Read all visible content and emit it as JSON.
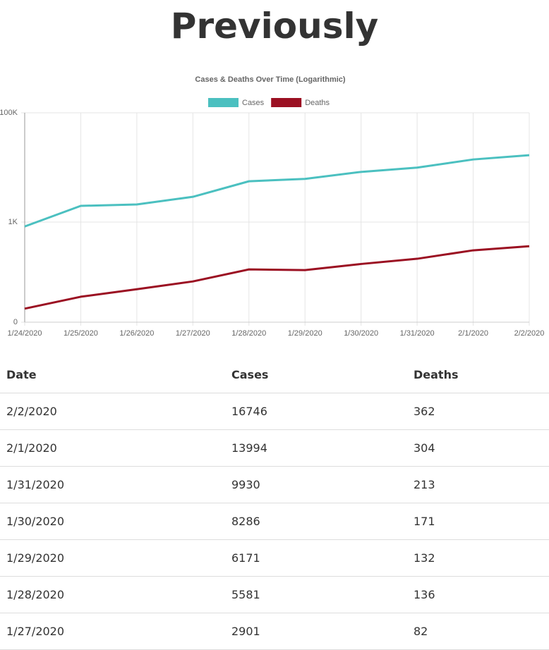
{
  "header": {
    "title": "Previously"
  },
  "chart_data": {
    "type": "line",
    "title": "Cases & Deaths Over Time (Logarithmic)",
    "categories": [
      "1/24/2020",
      "1/25/2020",
      "1/26/2020",
      "1/27/2020",
      "1/28/2020",
      "1/29/2020",
      "1/30/2020",
      "1/31/2020",
      "2/1/2020",
      "2/2/2020"
    ],
    "series": [
      {
        "name": "Cases",
        "color": "#4bc0c0",
        "values": [
          830,
          1980,
          2100,
          2901,
          5581,
          6171,
          8286,
          9930,
          13994,
          16746
        ]
      },
      {
        "name": "Deaths",
        "color": "#9b1022",
        "values": [
          26,
          43,
          59,
          82,
          136,
          132,
          171,
          213,
          304,
          362
        ]
      }
    ],
    "log_scale": true,
    "grid": true,
    "legend": "top",
    "ylim": [
      0,
      100000
    ],
    "yticks": [
      0,
      {
        "value": 1000,
        "label": "1K"
      },
      {
        "value": 100000,
        "label": "100K"
      }
    ]
  },
  "table": {
    "columns": [
      "Date",
      "Cases",
      "Deaths"
    ],
    "rows": [
      [
        "2/2/2020",
        16746,
        362
      ],
      [
        "2/1/2020",
        13994,
        304
      ],
      [
        "1/31/2020",
        9930,
        213
      ],
      [
        "1/30/2020",
        8286,
        171
      ],
      [
        "1/29/2020",
        6171,
        132
      ],
      [
        "1/28/2020",
        5581,
        136
      ],
      [
        "1/27/2020",
        2901,
        82
      ]
    ]
  }
}
